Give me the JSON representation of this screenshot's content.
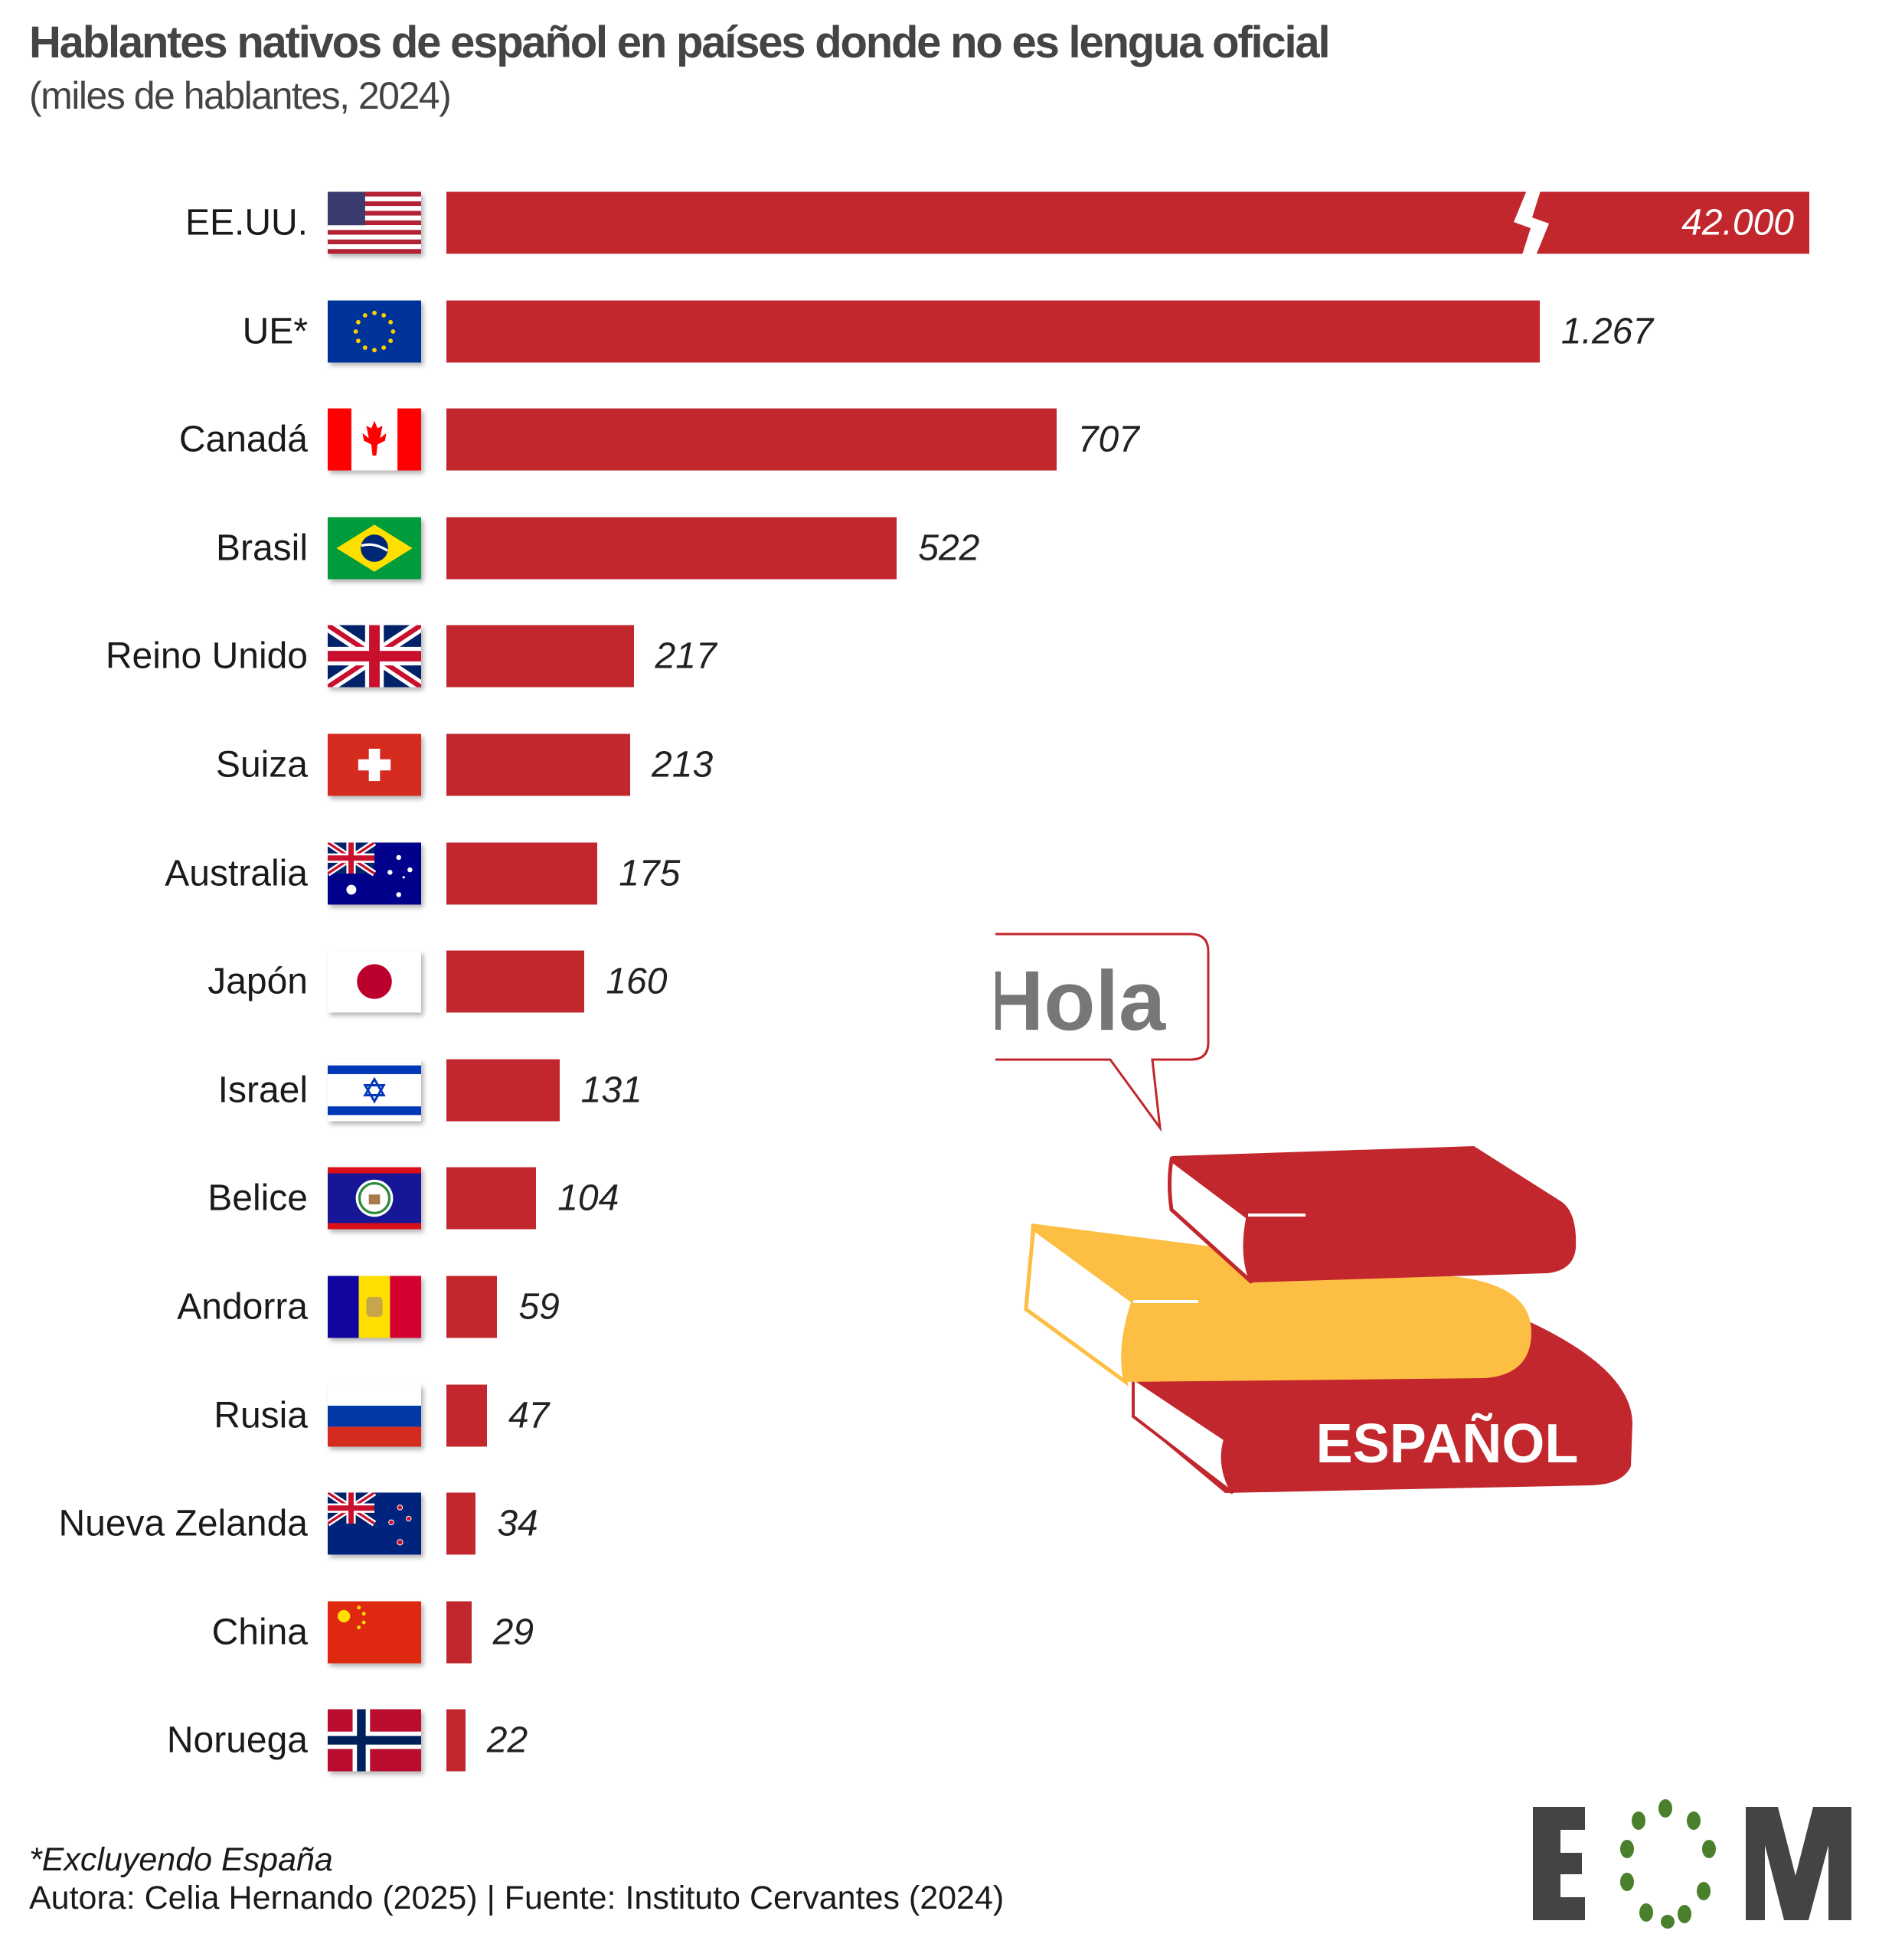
{
  "chart_data": {
    "type": "bar",
    "orientation": "horizontal",
    "title": "Hablantes nativos de español en países donde no es lengua oficial",
    "subtitle": "(miles de hablantes, 2024)",
    "categories": [
      "EE.UU.",
      "UE*",
      "Canadá",
      "Brasil",
      "Reino Unido",
      "Suiza",
      "Australia",
      "Japón",
      "Israel",
      "Belice",
      "Andorra",
      "Rusia",
      "Nueva Zelanda",
      "China",
      "Noruega"
    ],
    "values": [
      42000,
      1267,
      707,
      522,
      217,
      213,
      175,
      160,
      131,
      104,
      59,
      47,
      34,
      29,
      22
    ],
    "value_labels": [
      "42.000",
      "1.267",
      "707",
      "522",
      "217",
      "213",
      "175",
      "160",
      "131",
      "104",
      "59",
      "47",
      "34",
      "29",
      "22"
    ],
    "flags": [
      "us-flag-icon",
      "eu-flag-icon",
      "canada-flag-icon",
      "brazil-flag-icon",
      "uk-flag-icon",
      "switzerland-flag-icon",
      "australia-flag-icon",
      "japan-flag-icon",
      "israel-flag-icon",
      "belize-flag-icon",
      "andorra-flag-icon",
      "russia-flag-icon",
      "new-zealand-flag-icon",
      "china-flag-icon",
      "norway-flag-icon"
    ],
    "broken_bar": "EE.UU.",
    "bar_color": "#c1272d",
    "grid": false
  },
  "footnote": "*Excluyendo España",
  "source": "Autora: Celia Hernando (2025) | Fuente: Instituto Cervantes (2024)",
  "illustration": {
    "bubble_text": "Hola",
    "book_text": "ESPAÑOL"
  },
  "logo": {
    "text": "EOM",
    "colors": {
      "dark": "#444444",
      "green": "#4a7f2c"
    }
  }
}
